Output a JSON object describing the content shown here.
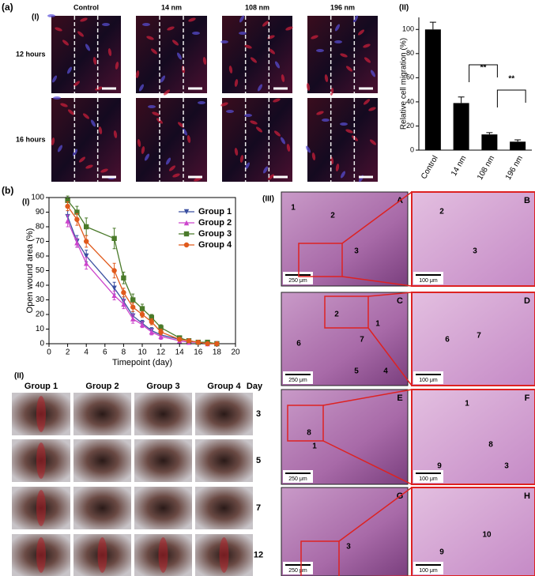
{
  "figure_labels": {
    "a": "(a)",
    "a_I": "(I)",
    "a_II": "(II)",
    "b": "(b)",
    "b_I": "(I)",
    "b_II": "(II)",
    "b_III": "(III)"
  },
  "migration_images": {
    "columns": [
      "Control",
      "14 nm",
      "108 nm",
      "196 nm"
    ],
    "rows": [
      "12 hours",
      "16 hours"
    ]
  },
  "chart_data": [
    {
      "type": "bar",
      "ylabel": "Relative cell migration (%)",
      "categories": [
        "Control",
        "14 nm",
        "108 nm",
        "196 nm"
      ],
      "values": [
        100,
        39,
        13,
        7
      ],
      "errors": [
        6,
        5,
        1.5,
        1.5
      ],
      "color": "#000000",
      "ylim": [
        0,
        110
      ],
      "yticks": [
        0,
        20,
        40,
        60,
        80,
        100
      ],
      "annotations": [
        "**",
        "**"
      ]
    },
    {
      "type": "line",
      "xlabel": "Timepoint (day)",
      "ylabel": "Open wound area (%)",
      "x": [
        2,
        3,
        4,
        7,
        8,
        9,
        10,
        11,
        12,
        14,
        15,
        16,
        17,
        18
      ],
      "series": [
        {
          "name": "Group 1",
          "color": "#3a4fa0",
          "marker": "triangle-down",
          "values": [
            87,
            70,
            60,
            38,
            29,
            19,
            14,
            9,
            6,
            3,
            2,
            1,
            0,
            0
          ],
          "errors": [
            4,
            4,
            4,
            4,
            3,
            3,
            2,
            2,
            2,
            1,
            1,
            1,
            0,
            0
          ]
        },
        {
          "name": "Group 2",
          "color": "#cc44cc",
          "marker": "triangle-up",
          "values": [
            84,
            69,
            55,
            33,
            27,
            17,
            13,
            8,
            5,
            2,
            1,
            1,
            0,
            0
          ],
          "errors": [
            4,
            3,
            4,
            3,
            3,
            3,
            2,
            2,
            2,
            1,
            1,
            1,
            0,
            0
          ]
        },
        {
          "name": "Group 3",
          "color": "#4a7a2a",
          "marker": "square",
          "values": [
            98,
            90,
            80,
            72,
            45,
            30,
            24,
            18,
            11,
            4,
            2,
            1,
            1,
            0
          ],
          "errors": [
            3,
            4,
            6,
            7,
            4,
            4,
            3,
            2,
            2,
            1,
            1,
            1,
            0,
            0
          ]
        },
        {
          "name": "Group 4",
          "color": "#e05a1c",
          "marker": "circle",
          "values": [
            94,
            85,
            70,
            50,
            35,
            25,
            20,
            15,
            8,
            3,
            2,
            1,
            0,
            0
          ],
          "errors": [
            3,
            4,
            4,
            5,
            3,
            3,
            2,
            2,
            2,
            1,
            1,
            1,
            0,
            0
          ]
        }
      ],
      "xlim": [
        0,
        20
      ],
      "xticks": [
        0,
        2,
        4,
        6,
        8,
        10,
        12,
        14,
        16,
        18,
        20
      ],
      "ylim": [
        0,
        100
      ],
      "yticks": [
        0,
        10,
        20,
        30,
        40,
        50,
        60,
        70,
        80,
        90,
        100
      ],
      "legend": "upper right"
    }
  ],
  "wound_photos": {
    "columns": [
      "Group 1",
      "Group 2",
      "Group 3",
      "Group 4"
    ],
    "day_header": "Day",
    "days": [
      "3",
      "5",
      "7",
      "12"
    ]
  },
  "histology": {
    "panels": [
      {
        "letter": "A",
        "scale": "250 μm",
        "labels": [
          "1",
          "2",
          "3"
        ]
      },
      {
        "letter": "B",
        "scale": "100 μm",
        "labels": [
          "2",
          "3"
        ]
      },
      {
        "letter": "C",
        "scale": "250 μm",
        "labels": [
          "2",
          "1",
          "6",
          "7",
          "5",
          "4"
        ]
      },
      {
        "letter": "D",
        "scale": "100 μm",
        "labels": [
          "7",
          "6"
        ]
      },
      {
        "letter": "E",
        "scale": "250 μm",
        "labels": [
          "8",
          "1"
        ]
      },
      {
        "letter": "F",
        "scale": "100 μm",
        "labels": [
          "1",
          "8",
          "9",
          "3"
        ]
      },
      {
        "letter": "G",
        "scale": "250 μm",
        "labels": [
          "3"
        ]
      },
      {
        "letter": "H",
        "scale": "100 μm",
        "labels": [
          "10",
          "9"
        ]
      }
    ]
  }
}
